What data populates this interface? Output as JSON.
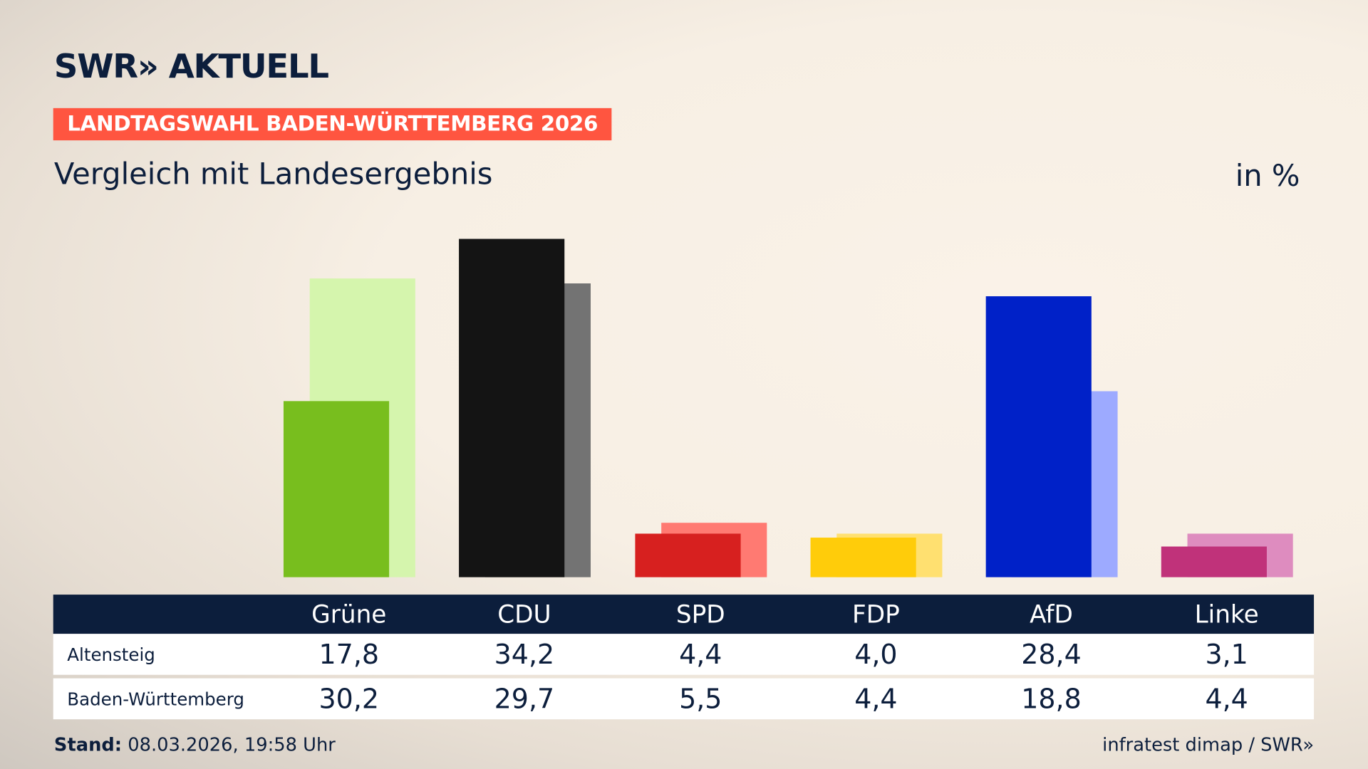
{
  "header": {
    "logo": "SWR» AKTUELL",
    "kicker": "LANDTAGSWAHL BADEN-WÜRTTEMBERG 2026",
    "subtitle": "Vergleich mit Landesergebnis",
    "unit": "in %"
  },
  "chart_data": {
    "type": "bar",
    "categories": [
      "Grüne",
      "CDU",
      "SPD",
      "FDP",
      "AfD",
      "Linke"
    ],
    "series": [
      {
        "name": "Altensteig",
        "values": [
          17.8,
          34.2,
          4.4,
          4.0,
          28.4,
          3.1
        ],
        "colors": [
          "#78be1e",
          "#141414",
          "#d7201f",
          "#ffcc0a",
          "#0021c8",
          "#c0327a"
        ]
      },
      {
        "name": "Baden-Württemberg",
        "values": [
          30.2,
          29.7,
          5.5,
          4.4,
          18.8,
          4.4
        ],
        "colors": [
          "#d5f5ad",
          "#737373",
          "#ff7a72",
          "#ffe070",
          "#9daaff",
          "#de8cbf"
        ]
      }
    ],
    "display_values": [
      [
        "17,8",
        "34,2",
        "4,4",
        "4,0",
        "28,4",
        "3,1"
      ],
      [
        "30,2",
        "29,7",
        "5,5",
        "4,4",
        "18,8",
        "4,4"
      ]
    ],
    "grid": false
  },
  "footer": {
    "stand_label": "Stand:",
    "stand_value": "08.03.2026, 19:58 Uhr",
    "source": "infratest dimap / SWR»"
  }
}
